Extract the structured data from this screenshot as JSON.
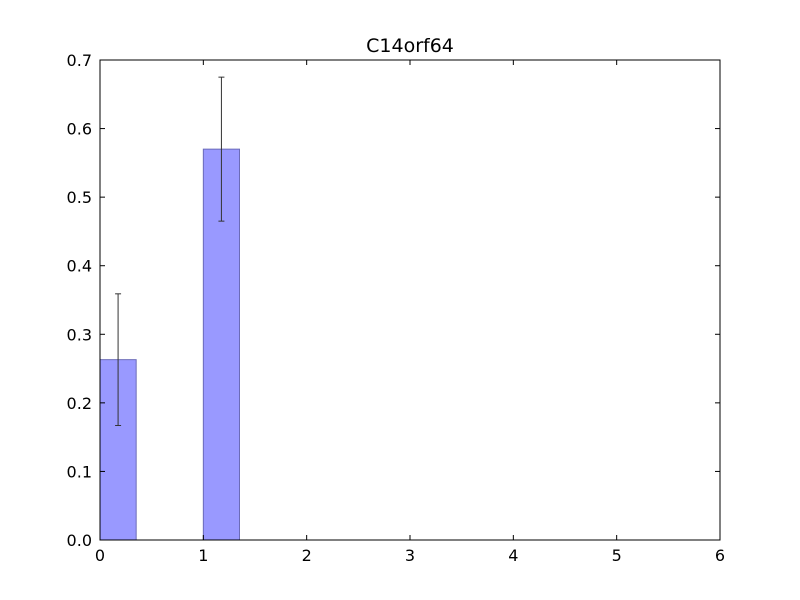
{
  "chart_data": {
    "type": "bar",
    "title": "C14orf64",
    "xlabel": "",
    "ylabel": "",
    "x": [
      0,
      1
    ],
    "values": [
      0.263,
      0.57
    ],
    "errors": [
      0.096,
      0.105
    ],
    "bar_width": 0.35,
    "xlim": [
      0,
      6
    ],
    "ylim": [
      0,
      0.7
    ],
    "xticks": [
      0,
      1,
      2,
      3,
      4,
      5,
      6
    ],
    "yticks": [
      0.0,
      0.1,
      0.2,
      0.3,
      0.4,
      0.5,
      0.6,
      0.7
    ],
    "xtick_labels": [
      "0",
      "1",
      "2",
      "3",
      "4",
      "5",
      "6"
    ],
    "ytick_labels": [
      "0.0",
      "0.1",
      "0.2",
      "0.3",
      "0.4",
      "0.5",
      "0.6",
      "0.7"
    ],
    "grid": false,
    "bar_color": "#9999ff",
    "bar_edge_color": "#6b6bb8",
    "error_color": "#333333"
  }
}
